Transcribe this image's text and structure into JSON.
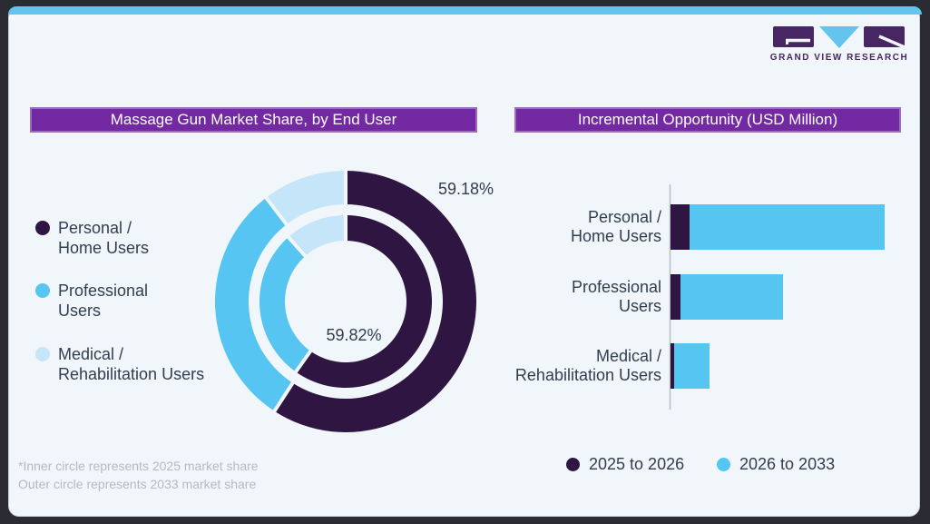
{
  "brand": {
    "logo_text": "GRAND VIEW RESEARCH"
  },
  "left_panel": {
    "header": "Massage Gun Market Share, by End User",
    "legend": [
      {
        "lines": [
          "Personal /",
          "Home Users"
        ],
        "color": "#2f1541"
      },
      {
        "lines": [
          "Professional",
          "Users"
        ],
        "color": "#56c5f2"
      },
      {
        "lines": [
          "Medical /",
          "Rehabilitation Users"
        ],
        "color": "#c5e5f8"
      }
    ],
    "donut_labels": {
      "outer": "59.18%",
      "inner": "59.82%"
    },
    "footnote_line1": "*Inner circle represents 2025 market share",
    "footnote_line2": "Outer circle represents 2033 market share"
  },
  "right_panel": {
    "header": "Incremental Opportunity (USD Million)",
    "categories": [
      {
        "lines": [
          "Personal /",
          "Home Users"
        ]
      },
      {
        "lines": [
          "Professional",
          "Users"
        ]
      },
      {
        "lines": [
          "Medical /",
          "Rehabilitation Users"
        ]
      }
    ],
    "legend": [
      {
        "label": "2025 to 2026",
        "color": "#2f1541"
      },
      {
        "label": "2026 to 2033",
        "color": "#56c5f2"
      }
    ]
  },
  "colors": {
    "page_bg": "#2b2b33",
    "card_bg": "#f0f6fa",
    "card_border": "#c6d0d7",
    "top_strip_blue": "#63c4ee",
    "header_purple": "#7229a2",
    "header_border": "#9d6cc2",
    "dark_plum": "#2f1541",
    "light_blue": "#56c5f2",
    "pale_blue": "#c5e5f8",
    "text_dark": "#323e4f",
    "footnote_gray": "#b2bbc4",
    "axis_gray": "#b6bfc8",
    "logo_purple": "#472663"
  },
  "chart_data": [
    {
      "type": "pie",
      "variant": "double-ring-donut",
      "title": "Massage Gun Market Share, by End User",
      "categories": [
        "Personal / Home Users",
        "Professional Users",
        "Medical / Rehabilitation Users"
      ],
      "colors": [
        "#2f1541",
        "#56c5f2",
        "#c5e5f8"
      ],
      "start_angle_deg": 0,
      "direction": "clockwise",
      "rings": [
        {
          "name": "2033 market share (outer circle)",
          "values_pct": [
            59.18,
            30.4,
            10.42
          ]
        },
        {
          "name": "2025 market share (inner circle)",
          "values_pct": [
            59.82,
            28.6,
            11.58
          ]
        }
      ],
      "data_labels": [
        {
          "text": "59.18%",
          "refers_to": "Personal / Home Users, outer ring (2033)"
        },
        {
          "text": "59.82%",
          "refers_to": "Personal / Home Users, inner ring (2025)"
        }
      ],
      "note": "only the two Personal/Home Users shares are labeled; other segment percentages estimated from arc angles"
    },
    {
      "type": "bar",
      "orientation": "horizontal-stacked",
      "title": "Incremental Opportunity (USD Million)",
      "categories": [
        "Personal / Home Users",
        "Professional Users",
        "Medical / Rehabilitation Users"
      ],
      "series": [
        {
          "name": "2025 to 2026",
          "color": "#2f1541",
          "values": [
            21,
            11,
            4
          ]
        },
        {
          "name": "2026 to 2033",
          "color": "#56c5f2",
          "values": [
            215,
            113,
            39
          ]
        }
      ],
      "axis_note": "no numeric axis shown; values are relative estimates from bar lengths",
      "legend_position": "bottom",
      "grid": false
    }
  ]
}
